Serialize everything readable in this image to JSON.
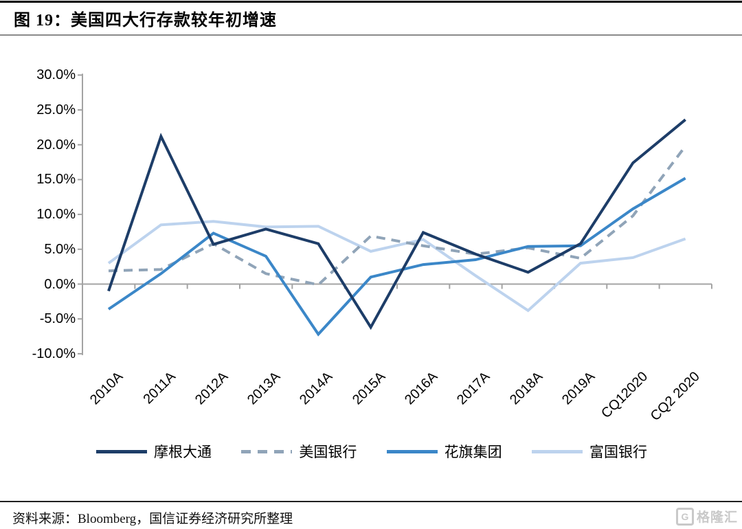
{
  "header": {
    "title": "图 19：美国四大行存款较年初增速"
  },
  "chart_data": {
    "type": "line",
    "title": "美国四大行存款较年初增速",
    "categories": [
      "2010A",
      "2011A",
      "2012A",
      "2013A",
      "2014A",
      "2015A",
      "2016A",
      "2017A",
      "2018A",
      "2019A",
      "CQ12020",
      "CQ2 2020"
    ],
    "y_ticks": [
      "30.0%",
      "25.0%",
      "20.0%",
      "15.0%",
      "10.0%",
      "5.0%",
      "0.0%",
      "-5.0%",
      "-10.0%"
    ],
    "y_tick_values": [
      30,
      25,
      20,
      15,
      10,
      5,
      0,
      -5,
      -10
    ],
    "ylim": [
      -10,
      30
    ],
    "unit": "percent",
    "grid": "zero-line-only",
    "legend_position": "bottom",
    "axis_color": "#a3a3a3",
    "series": [
      {
        "name": "摩根大通",
        "color": "#1d3d68",
        "dash": "solid",
        "values": [
          -1.0,
          21.2,
          5.7,
          7.9,
          5.8,
          -6.2,
          7.4,
          4.3,
          1.7,
          5.8,
          17.4,
          23.6
        ]
      },
      {
        "name": "美国银行",
        "color": "#90a4b8",
        "dash": "dashed",
        "values": [
          1.9,
          2.1,
          5.8,
          1.5,
          -0.1,
          6.9,
          5.5,
          4.3,
          5.2,
          3.7,
          9.8,
          19.8
        ]
      },
      {
        "name": "花旗集团",
        "color": "#3b87c8",
        "dash": "solid",
        "values": [
          -3.6,
          1.5,
          7.3,
          4.0,
          -7.2,
          1.0,
          2.8,
          3.5,
          5.4,
          5.5,
          10.8,
          15.2
        ]
      },
      {
        "name": "富国银行",
        "color": "#bdd3ee",
        "dash": "solid",
        "values": [
          3.0,
          8.5,
          9.0,
          8.2,
          8.3,
          4.7,
          6.4,
          1.2,
          -3.8,
          3.0,
          3.8,
          6.5
        ]
      }
    ]
  },
  "footer": {
    "source": "资料来源：Bloomberg，国信证券经济研究所整理"
  },
  "logo": {
    "icon": "G",
    "text": "格隆汇"
  }
}
